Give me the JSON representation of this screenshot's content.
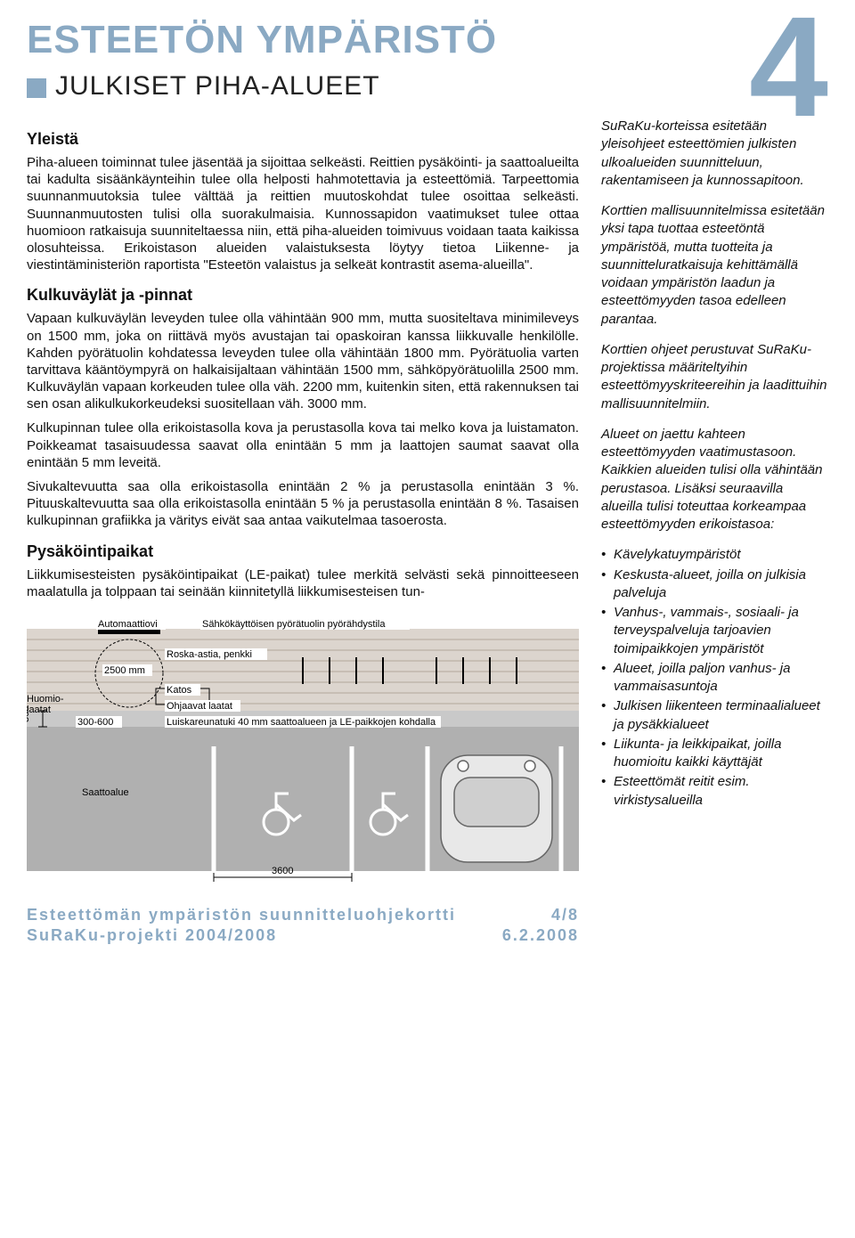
{
  "page": {
    "main_title": "ESTEETÖN YMPÄRISTÖ",
    "big_number": "4",
    "subtitle": "JULKISET PIHA-ALUEET",
    "accent_color": "#8aa9c3",
    "text_color": "#111111",
    "background": "#ffffff"
  },
  "left": {
    "h1": "Yleistä",
    "p1": "Piha-alueen toiminnat tulee jäsentää ja sijoittaa selkeästi. Reittien pysäköinti- ja saattoalueilta tai kadulta sisäänkäynteihin tulee olla helposti hahmotettavia ja esteettömiä. Tarpeettomia suunnanmuutoksia tulee välttää ja reittien muutoskohdat tulee osoittaa selkeästi. Suunnanmuutosten tulisi olla suorakulmaisia. Kunnossapidon vaatimukset tulee ottaa huomioon ratkaisuja suunniteltaessa niin, että piha-alueiden toimivuus voidaan taata kaikissa olosuhteissa. Erikoistason alueiden valaistuksesta löytyy tietoa Liikenne- ja viestintäministeriön raportista \"Esteetön valaistus ja selkeät kontrastit asema-alueilla\".",
    "h2": "Kulkuväylät ja -pinnat",
    "p2": "Vapaan kulkuväylän leveyden tulee olla vähintään 900 mm, mutta suositeltava minimileveys on 1500 mm, joka on riittävä myös avustajan tai opaskoiran kanssa liikkuvalle henkilölle. Kahden pyörätuolin kohdatessa leveyden tulee olla vähintään 1800 mm. Pyörätuolia varten tarvittava kääntöympyrä on halkaisijaltaan vähintään 1500 mm, sähköpyörätuolilla 2500 mm. Kulkuväylän vapaan korkeuden tulee olla väh. 2200 mm, kuitenkin siten, että rakennuksen tai sen osan alikulkukorkeudeksi suositellaan väh. 3000 mm.",
    "p3": "Kulkupinnan tulee olla erikoistasolla kova ja perustasolla kova tai melko kova ja luistamaton. Poikkeamat tasaisuudessa saavat olla enintään 5 mm ja laattojen saumat saavat olla enintään 5 mm leveitä.",
    "p4": "Sivukaltevuutta saa olla erikoistasolla enintään 2 % ja perustasolla enintään 3 %. Pituuskaltevuutta saa olla erikoistasolla enintään 5 % ja perustasolla enintään 8 %. Tasaisen kulkupinnan grafiikka ja väritys eivät saa antaa vaikutelmaa tasoerosta.",
    "h3": "Pysäköintipaikat",
    "p5": "Liikkumisesteisten pysäköintipaikat (LE-paikat) tulee merkitä selvästi sekä pinnoitteeseen maalatulla ja tolppaan tai seinään kiinnitetyllä liikkumisesteisen tun-"
  },
  "diagram": {
    "labels": {
      "automaattiovi": "Automaattiovi",
      "sahko": "Sähkökäyttöisen pyörätuolin pyörähdystila",
      "roska": "Roska-astia, penkki",
      "katos": "Katos",
      "ohjaavat": "Ohjaavat laatat",
      "luiskareuna": "Luiskareunatuki 40 mm saattoalueen ja LE-paikkojen kohdalla",
      "huomiolaatat": "Huomio-\nlaatat",
      "saattoalue": "Saattoalue",
      "dim_2500": "2500 mm",
      "dim_300": "300",
      "dim_300_600": "300-600",
      "dim_3600": "3600"
    },
    "colors": {
      "brick": "#dcd5ce",
      "brick_line": "#b2a79b",
      "ground": "#b0b0b0",
      "line_white": "#ffffff",
      "outline": "#000000",
      "label_box": "#ffffff"
    }
  },
  "right": {
    "p1": "SuRaKu-korteissa esitetään yleisohjeet esteettömien julkisten ulkoalueiden suunnitteluun, rakentamiseen ja kunnossapitoon.",
    "p2": "Korttien mallisuunnitelmissa esitetään yksi tapa tuottaa esteetöntä ympäristöä, mutta tuotteita ja suunnitteluratkaisuja kehittämällä voidaan ympäristön laadun ja esteettömyyden tasoa edelleen parantaa.",
    "p3": "Korttien ohjeet perustuvat SuRaKu-projektissa määriteltyihin esteettömyyskriteereihin ja laadittuihin mallisuunnitelmiin.",
    "p4": "Alueet on jaettu kahteen esteettömyyden vaatimustasoon. Kaikkien alueiden tulisi olla vähintään perustasoa. Lisäksi seuraavilla alueilla tulisi toteuttaa korkeampaa esteettömyyden erikoistasoa:",
    "list": [
      "Kävelykatuympäristöt",
      "Keskusta-alueet, joilla on julkisia palveluja",
      "Vanhus-, vammais-, sosiaali- ja terveyspalveluja tarjoavien toimipaikkojen ympäristöt",
      "Alueet, joilla paljon vanhus- ja vammaisasuntoja",
      "Julkisen liikenteen terminaalialueet ja pysäkkialueet",
      "Liikunta- ja leikkipaikat, joilla huomioitu kaikki käyttäjät",
      "Esteettömät reitit esim. virkistysalueilla"
    ]
  },
  "footer": {
    "line1_left": "Esteettömän ympäristön suunnitteluohjekortti",
    "line1_right": "4/8",
    "line2_left": "SuRaKu-projekti 2004/2008",
    "line2_right": "6.2.2008"
  }
}
